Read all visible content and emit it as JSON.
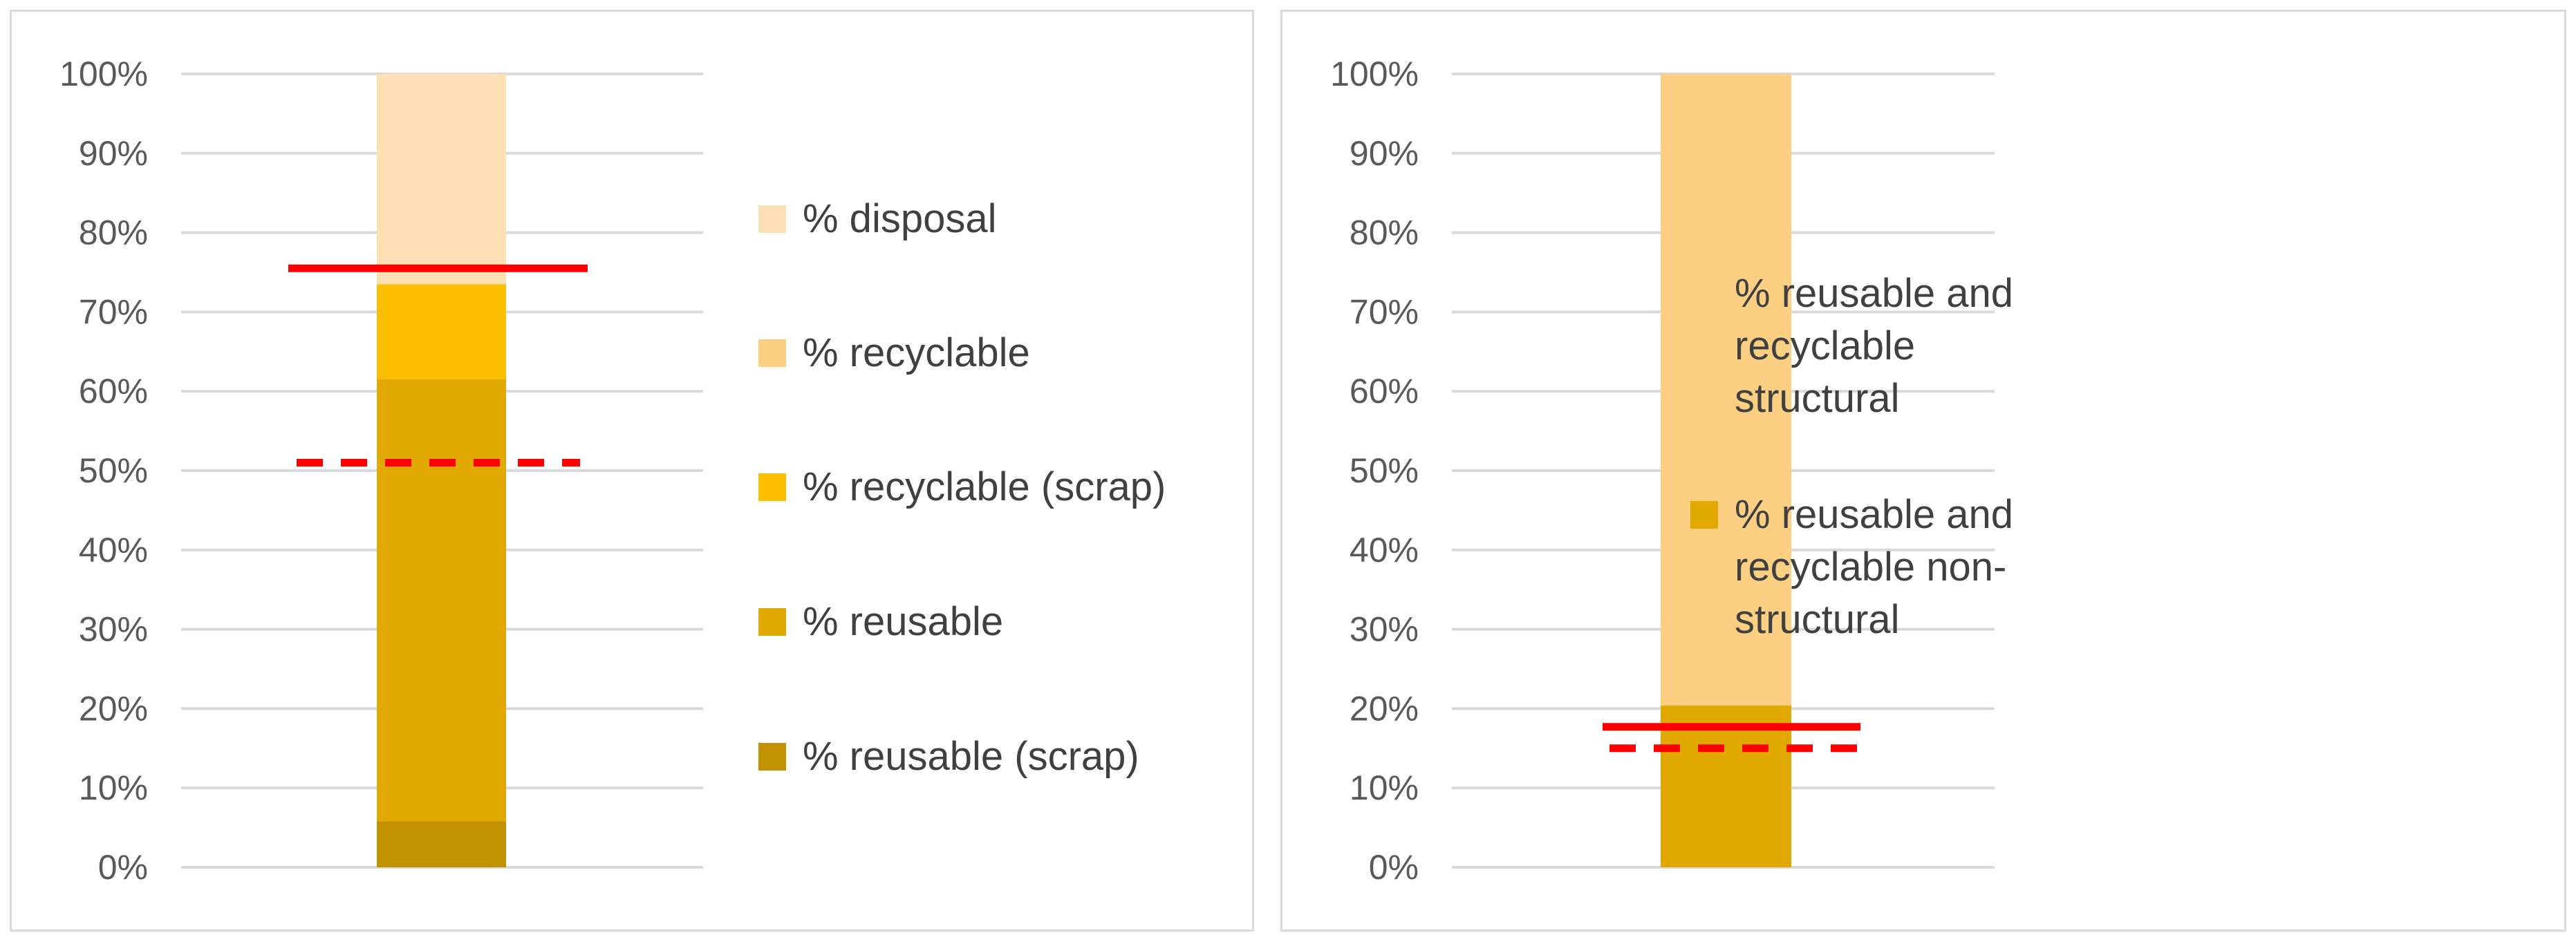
{
  "chart_data": [
    {
      "type": "bar",
      "stacked": true,
      "ylim": [
        0,
        100
      ],
      "yticks": [
        "0%",
        "10%",
        "20%",
        "30%",
        "40%",
        "50%",
        "60%",
        "70%",
        "80%",
        "90%",
        "100%"
      ],
      "grid": true,
      "legend_position": "right",
      "series": [
        {
          "name": "% disposal",
          "value": 26.5,
          "color": "#fde0b4"
        },
        {
          "name": "% recyclable",
          "value": 0,
          "color": "#fdcf82"
        },
        {
          "name": "% recyclable (scrap)",
          "value": 12,
          "color": "#fcbf00"
        },
        {
          "name": "% reusable",
          "value": 55.7,
          "color": "#e0a800"
        },
        {
          "name": "% reusable (scrap)",
          "value": 5.8,
          "color": "#c19100"
        }
      ],
      "reference_lines": [
        {
          "value": 75.5,
          "style": "solid",
          "color": "#ff0000"
        },
        {
          "value": 51,
          "style": "dashed",
          "color": "#ff0000"
        }
      ]
    },
    {
      "type": "bar",
      "stacked": true,
      "ylim": [
        0,
        100
      ],
      "yticks": [
        "0%",
        "10%",
        "20%",
        "30%",
        "40%",
        "50%",
        "60%",
        "70%",
        "80%",
        "90%",
        "100%"
      ],
      "grid": true,
      "legend_position": "right",
      "series": [
        {
          "name": "% reusable and recyclable structural",
          "value": 79.6,
          "color": "#fdcf82"
        },
        {
          "name": "% reusable and recyclable non-structural",
          "value": 20.4,
          "color": "#e0a800"
        }
      ],
      "legend_lines": [
        [
          "% reusable and",
          "recyclable",
          "structural"
        ],
        [
          "% reusable and",
          "recyclable non-",
          "structural"
        ]
      ],
      "reference_lines": [
        {
          "value": 17.7,
          "style": "solid",
          "color": "#ff0000"
        },
        {
          "value": 15,
          "style": "dashed",
          "color": "#ff0000"
        }
      ]
    }
  ]
}
